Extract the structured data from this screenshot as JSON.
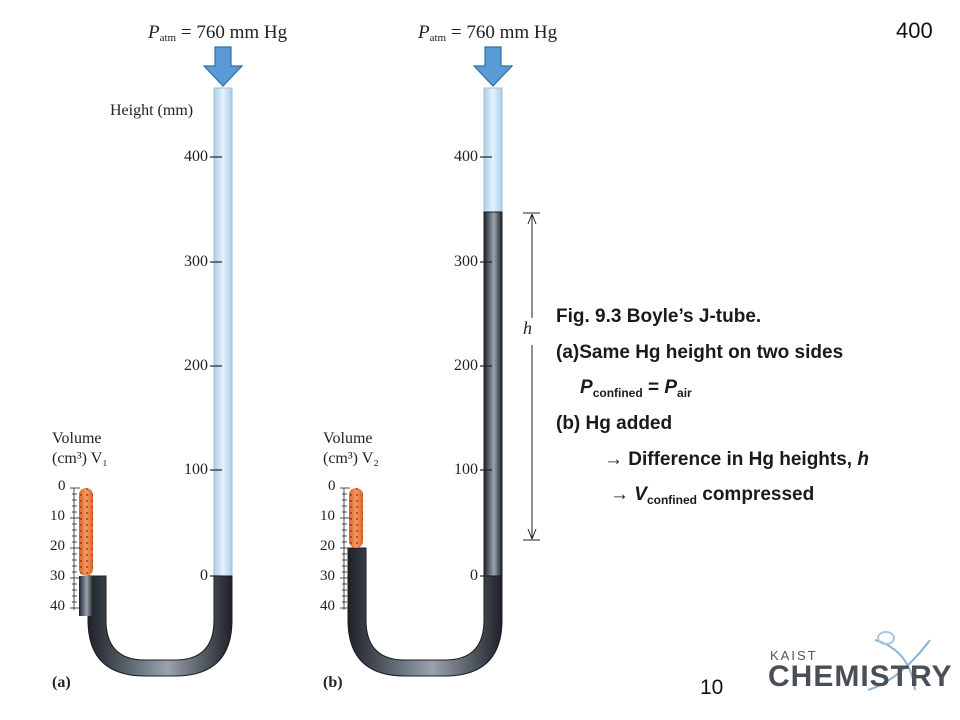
{
  "slide": {
    "page_number_top": "400",
    "page_number_bottom": "10"
  },
  "panel_a": {
    "pressure_label_p": "P",
    "pressure_label_sub": "atm",
    "pressure_label_rest": " = 760 mm Hg",
    "height_axis_title": "Height (mm)",
    "height_ticks": [
      "400",
      "300",
      "200",
      "100",
      "0"
    ],
    "volume_title_line1": "Volume",
    "volume_title_line2": "(cm³) V₁",
    "volume_ticks": [
      "0",
      "10",
      "20",
      "30",
      "40"
    ],
    "tag": "(a)"
  },
  "panel_b": {
    "pressure_label_p": "P",
    "pressure_label_sub": "atm",
    "pressure_label_rest": " = 760 mm Hg",
    "height_ticks": [
      "400",
      "300",
      "200",
      "100",
      "0"
    ],
    "volume_title_line1": "Volume",
    "volume_title_line2": "(cm³) V₂",
    "volume_ticks": [
      "0",
      "10",
      "20",
      "30",
      "40"
    ],
    "height_difference_label": "h",
    "tag": "(b)"
  },
  "caption": {
    "line1": "Fig. 9.3 Boyle’s J-tube.",
    "line2": "(a)Same Hg height on two sides",
    "line3_p": "P",
    "line3_sub": "confined",
    "line3_mid": " = ",
    "line3_p2": "P",
    "line3_sub2": "air",
    "line4": "(b) Hg added",
    "line5_arrow": "→",
    "line5_text": " Difference in Hg heights, ",
    "line5_h": "h",
    "line6_arrow": "→",
    "line6_v": "V",
    "line6_sub": "confined",
    "line6_text": " compressed"
  },
  "logo": {
    "small": "KAIST",
    "big": "CHEMISTRY"
  },
  "colors": {
    "mercury": "#3a3f47",
    "air_column": "#bcd9ef",
    "gas": "#e8703a",
    "arrow": "#5b9bd5"
  }
}
